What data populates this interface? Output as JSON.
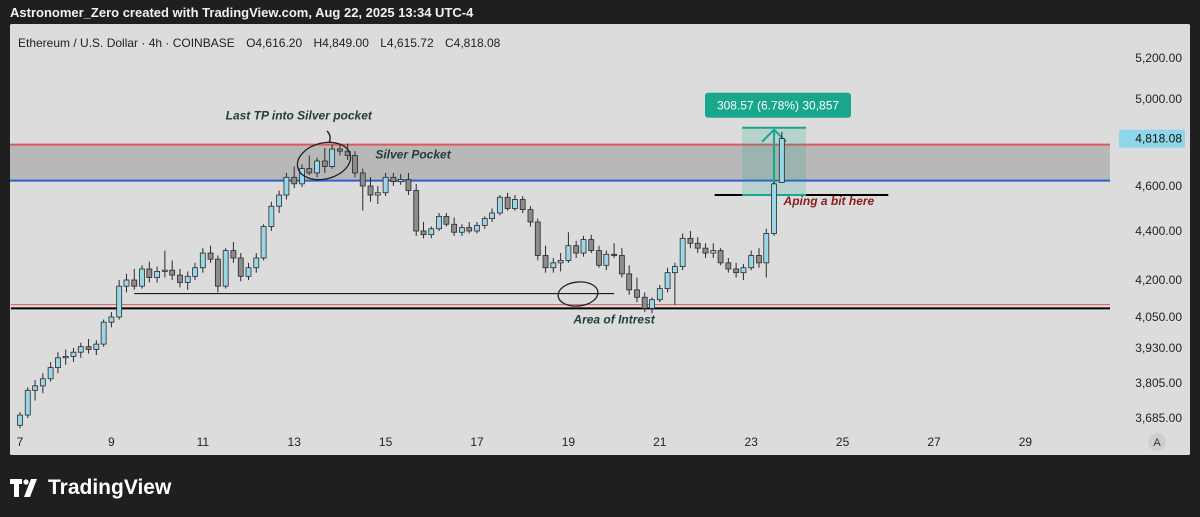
{
  "header": {
    "caption": "Astronomer_Zero created with TradingView.com, Aug 22, 2025 13:34 UTC-4"
  },
  "legend": {
    "symbol": "Ethereum / U.S. Dollar · 4h · COINBASE",
    "open_label": "O",
    "open": "4,616.20",
    "high_label": "H",
    "high": "4,849.00",
    "low_label": "L",
    "low": "4,615.72",
    "close_label": "C",
    "close": "4,818.08"
  },
  "brand": {
    "name": "TradingView"
  },
  "icons": {
    "logo": "tradingview-logo-icon",
    "auto_scale": "auto-scale-icon"
  },
  "colors": {
    "background": "#dcdcdc",
    "frame": "#1f1f1f",
    "candle_up": "#9ad7e8",
    "candle_down": "#8c8c8c",
    "candle_outline": "#2a2a2a",
    "zone": "#b3b1b3",
    "zone_red": "#e05a5a",
    "zone_blue": "#2f5fd0",
    "measure": "#18a68c",
    "annotation_text": "#1f3d3a",
    "aping_text": "#8a1d1d",
    "price_tag": "#8fd6ea"
  },
  "chart_data": {
    "type": "candlestick",
    "symbol": "Ethereum / U.S. Dollar",
    "interval": "4h",
    "exchange": "COINBASE",
    "x_axis_ticks": [
      "7",
      "9",
      "11",
      "13",
      "15",
      "17",
      "19",
      "21",
      "23",
      "25",
      "27",
      "29"
    ],
    "x_range_days": [
      6.8,
      31.3
    ],
    "y_axis_ticks": [
      "5,200.00",
      "5,000.00",
      "4,600.00",
      "4,400.00",
      "4,200.00",
      "4,050.00",
      "3,930.00",
      "3,805.00",
      "3,685.00"
    ],
    "y_axis_tick_values": [
      5200,
      5000,
      4600,
      4400,
      4200,
      4050,
      3930,
      3805,
      3685
    ],
    "last_price_label": "4,818.08",
    "last_price": 4818.08,
    "auto_scale_label": "A",
    "zones": [
      {
        "label": "Silver Pocket",
        "top": 4790,
        "bottom": 4625
      }
    ],
    "horizontal_lines": [
      {
        "price": 4085,
        "start_day": 6.8,
        "end_day": 31.3,
        "color": "#000000",
        "width": 2
      },
      {
        "price": 4100,
        "start_day": 6.8,
        "end_day": 31.3,
        "color": "#e05a5a",
        "width": 1
      },
      {
        "price": 4145,
        "start_day": 9.5,
        "end_day": 20.0,
        "color": "#000000",
        "width": 1
      },
      {
        "price": 4560,
        "start_day": 22.2,
        "end_day": 26.0,
        "color": "#000000",
        "width": 2
      }
    ],
    "annotations": [
      {
        "text": "Last TP into Silver pocket",
        "day": 13.1,
        "price": 4905
      },
      {
        "text": "Silver Pocket",
        "day": 15.6,
        "price": 4727
      },
      {
        "text": "Area of Intrest",
        "day": 20.0,
        "price": 4025
      },
      {
        "text": "Aping a bit here",
        "day": 24.7,
        "price": 4515
      }
    ],
    "measure": {
      "label": "308.57 (6.78%) 30,857",
      "day_start": 22.8,
      "day_end": 24.2,
      "price_from": 4560,
      "price_to": 4868
    },
    "candles": [
      {
        "t": 7.0,
        "o": 3660,
        "h": 3705,
        "l": 3650,
        "c": 3695
      },
      {
        "t": 7.17,
        "o": 3695,
        "h": 3790,
        "l": 3685,
        "c": 3780
      },
      {
        "t": 7.33,
        "o": 3780,
        "h": 3815,
        "l": 3745,
        "c": 3795
      },
      {
        "t": 7.5,
        "o": 3795,
        "h": 3840,
        "l": 3770,
        "c": 3820
      },
      {
        "t": 7.67,
        "o": 3820,
        "h": 3880,
        "l": 3810,
        "c": 3860
      },
      {
        "t": 7.83,
        "o": 3860,
        "h": 3915,
        "l": 3840,
        "c": 3895
      },
      {
        "t": 8.0,
        "o": 3895,
        "h": 3925,
        "l": 3870,
        "c": 3900
      },
      {
        "t": 8.17,
        "o": 3900,
        "h": 3930,
        "l": 3880,
        "c": 3915
      },
      {
        "t": 8.33,
        "o": 3915,
        "h": 3950,
        "l": 3895,
        "c": 3935
      },
      {
        "t": 8.5,
        "o": 3935,
        "h": 3965,
        "l": 3910,
        "c": 3925
      },
      {
        "t": 8.67,
        "o": 3925,
        "h": 3960,
        "l": 3905,
        "c": 3945
      },
      {
        "t": 8.83,
        "o": 3945,
        "h": 4040,
        "l": 3935,
        "c": 4030
      },
      {
        "t": 9.0,
        "o": 4030,
        "h": 4070,
        "l": 4010,
        "c": 4050
      },
      {
        "t": 9.17,
        "o": 4050,
        "h": 4200,
        "l": 4040,
        "c": 4175
      },
      {
        "t": 9.33,
        "o": 4175,
        "h": 4225,
        "l": 4150,
        "c": 4200
      },
      {
        "t": 9.5,
        "o": 4200,
        "h": 4245,
        "l": 4160,
        "c": 4175
      },
      {
        "t": 9.67,
        "o": 4175,
        "h": 4260,
        "l": 4165,
        "c": 4245
      },
      {
        "t": 9.83,
        "o": 4245,
        "h": 4275,
        "l": 4190,
        "c": 4210
      },
      {
        "t": 10.0,
        "o": 4210,
        "h": 4255,
        "l": 4190,
        "c": 4235
      },
      {
        "t": 10.17,
        "o": 4235,
        "h": 4320,
        "l": 4210,
        "c": 4240
      },
      {
        "t": 10.33,
        "o": 4240,
        "h": 4280,
        "l": 4200,
        "c": 4220
      },
      {
        "t": 10.5,
        "o": 4220,
        "h": 4245,
        "l": 4170,
        "c": 4190
      },
      {
        "t": 10.67,
        "o": 4190,
        "h": 4235,
        "l": 4160,
        "c": 4215
      },
      {
        "t": 10.83,
        "o": 4215,
        "h": 4270,
        "l": 4200,
        "c": 4250
      },
      {
        "t": 11.0,
        "o": 4250,
        "h": 4330,
        "l": 4230,
        "c": 4310
      },
      {
        "t": 11.17,
        "o": 4310,
        "h": 4340,
        "l": 4270,
        "c": 4285
      },
      {
        "t": 11.33,
        "o": 4285,
        "h": 4300,
        "l": 4150,
        "c": 4175
      },
      {
        "t": 11.5,
        "o": 4175,
        "h": 4330,
        "l": 4165,
        "c": 4320
      },
      {
        "t": 11.67,
        "o": 4320,
        "h": 4355,
        "l": 4270,
        "c": 4290
      },
      {
        "t": 11.83,
        "o": 4290,
        "h": 4310,
        "l": 4195,
        "c": 4215
      },
      {
        "t": 12.0,
        "o": 4215,
        "h": 4270,
        "l": 4200,
        "c": 4250
      },
      {
        "t": 12.17,
        "o": 4250,
        "h": 4310,
        "l": 4230,
        "c": 4290
      },
      {
        "t": 12.33,
        "o": 4290,
        "h": 4430,
        "l": 4280,
        "c": 4420
      },
      {
        "t": 12.5,
        "o": 4420,
        "h": 4530,
        "l": 4400,
        "c": 4510
      },
      {
        "t": 12.67,
        "o": 4510,
        "h": 4580,
        "l": 4480,
        "c": 4560
      },
      {
        "t": 12.83,
        "o": 4560,
        "h": 4660,
        "l": 4540,
        "c": 4640
      },
      {
        "t": 13.0,
        "o": 4640,
        "h": 4690,
        "l": 4590,
        "c": 4610
      },
      {
        "t": 13.17,
        "o": 4610,
        "h": 4700,
        "l": 4595,
        "c": 4680
      },
      {
        "t": 13.33,
        "o": 4680,
        "h": 4740,
        "l": 4650,
        "c": 4660
      },
      {
        "t": 13.5,
        "o": 4660,
        "h": 4730,
        "l": 4640,
        "c": 4715
      },
      {
        "t": 13.67,
        "o": 4715,
        "h": 4775,
        "l": 4660,
        "c": 4690
      },
      {
        "t": 13.83,
        "o": 4690,
        "h": 4790,
        "l": 4680,
        "c": 4770
      },
      {
        "t": 14.0,
        "o": 4770,
        "h": 4795,
        "l": 4740,
        "c": 4760
      },
      {
        "t": 14.17,
        "o": 4760,
        "h": 4795,
        "l": 4720,
        "c": 4740
      },
      {
        "t": 14.33,
        "o": 4740,
        "h": 4760,
        "l": 4640,
        "c": 4660
      },
      {
        "t": 14.5,
        "o": 4660,
        "h": 4680,
        "l": 4490,
        "c": 4600
      },
      {
        "t": 14.67,
        "o": 4600,
        "h": 4640,
        "l": 4530,
        "c": 4560
      },
      {
        "t": 14.83,
        "o": 4560,
        "h": 4600,
        "l": 4520,
        "c": 4570
      },
      {
        "t": 15.0,
        "o": 4570,
        "h": 4660,
        "l": 4555,
        "c": 4640
      },
      {
        "t": 15.17,
        "o": 4640,
        "h": 4660,
        "l": 4600,
        "c": 4620
      },
      {
        "t": 15.33,
        "o": 4620,
        "h": 4655,
        "l": 4605,
        "c": 4630
      },
      {
        "t": 15.5,
        "o": 4630,
        "h": 4660,
        "l": 4560,
        "c": 4580
      },
      {
        "t": 15.67,
        "o": 4580,
        "h": 4610,
        "l": 4380,
        "c": 4400
      },
      {
        "t": 15.83,
        "o": 4400,
        "h": 4440,
        "l": 4370,
        "c": 4385
      },
      {
        "t": 16.0,
        "o": 4385,
        "h": 4420,
        "l": 4370,
        "c": 4410
      },
      {
        "t": 16.17,
        "o": 4410,
        "h": 4480,
        "l": 4400,
        "c": 4465
      },
      {
        "t": 16.33,
        "o": 4465,
        "h": 4480,
        "l": 4420,
        "c": 4430
      },
      {
        "t": 16.5,
        "o": 4430,
        "h": 4460,
        "l": 4380,
        "c": 4395
      },
      {
        "t": 16.67,
        "o": 4395,
        "h": 4430,
        "l": 4380,
        "c": 4415
      },
      {
        "t": 16.83,
        "o": 4415,
        "h": 4440,
        "l": 4390,
        "c": 4400
      },
      {
        "t": 17.0,
        "o": 4400,
        "h": 4440,
        "l": 4390,
        "c": 4425
      },
      {
        "t": 17.17,
        "o": 4425,
        "h": 4465,
        "l": 4410,
        "c": 4455
      },
      {
        "t": 17.33,
        "o": 4455,
        "h": 4500,
        "l": 4440,
        "c": 4480
      },
      {
        "t": 17.5,
        "o": 4480,
        "h": 4560,
        "l": 4470,
        "c": 4550
      },
      {
        "t": 17.67,
        "o": 4550,
        "h": 4570,
        "l": 4490,
        "c": 4500
      },
      {
        "t": 17.83,
        "o": 4500,
        "h": 4560,
        "l": 4490,
        "c": 4540
      },
      {
        "t": 18.0,
        "o": 4540,
        "h": 4555,
        "l": 4480,
        "c": 4495
      },
      {
        "t": 18.17,
        "o": 4495,
        "h": 4510,
        "l": 4420,
        "c": 4440
      },
      {
        "t": 18.33,
        "o": 4440,
        "h": 4455,
        "l": 4280,
        "c": 4300
      },
      {
        "t": 18.5,
        "o": 4300,
        "h": 4340,
        "l": 4230,
        "c": 4250
      },
      {
        "t": 18.67,
        "o": 4250,
        "h": 4290,
        "l": 4230,
        "c": 4270
      },
      {
        "t": 18.83,
        "o": 4270,
        "h": 4310,
        "l": 4235,
        "c": 4280
      },
      {
        "t": 19.0,
        "o": 4280,
        "h": 4395,
        "l": 4270,
        "c": 4340
      },
      {
        "t": 19.17,
        "o": 4340,
        "h": 4360,
        "l": 4290,
        "c": 4310
      },
      {
        "t": 19.33,
        "o": 4310,
        "h": 4380,
        "l": 4295,
        "c": 4365
      },
      {
        "t": 19.5,
        "o": 4365,
        "h": 4385,
        "l": 4310,
        "c": 4320
      },
      {
        "t": 19.67,
        "o": 4320,
        "h": 4340,
        "l": 4250,
        "c": 4260
      },
      {
        "t": 19.83,
        "o": 4260,
        "h": 4320,
        "l": 4240,
        "c": 4305
      },
      {
        "t": 20.0,
        "o": 4305,
        "h": 4350,
        "l": 4290,
        "c": 4300
      },
      {
        "t": 20.17,
        "o": 4300,
        "h": 4330,
        "l": 4210,
        "c": 4225
      },
      {
        "t": 20.33,
        "o": 4225,
        "h": 4260,
        "l": 4140,
        "c": 4160
      },
      {
        "t": 20.5,
        "o": 4160,
        "h": 4210,
        "l": 4110,
        "c": 4130
      },
      {
        "t": 20.67,
        "o": 4130,
        "h": 4150,
        "l": 4070,
        "c": 4085
      },
      {
        "t": 20.83,
        "o": 4085,
        "h": 4130,
        "l": 4065,
        "c": 4120
      },
      {
        "t": 21.0,
        "o": 4120,
        "h": 4180,
        "l": 4110,
        "c": 4165
      },
      {
        "t": 21.17,
        "o": 4165,
        "h": 4250,
        "l": 4150,
        "c": 4230
      },
      {
        "t": 21.33,
        "o": 4230,
        "h": 4270,
        "l": 4100,
        "c": 4255
      },
      {
        "t": 21.5,
        "o": 4255,
        "h": 4390,
        "l": 4240,
        "c": 4370
      },
      {
        "t": 21.67,
        "o": 4370,
        "h": 4400,
        "l": 4330,
        "c": 4350
      },
      {
        "t": 21.83,
        "o": 4350,
        "h": 4375,
        "l": 4310,
        "c": 4330
      },
      {
        "t": 22.0,
        "o": 4330,
        "h": 4350,
        "l": 4290,
        "c": 4310
      },
      {
        "t": 22.17,
        "o": 4310,
        "h": 4350,
        "l": 4290,
        "c": 4320
      },
      {
        "t": 22.33,
        "o": 4320,
        "h": 4330,
        "l": 4260,
        "c": 4270
      },
      {
        "t": 22.5,
        "o": 4270,
        "h": 4290,
        "l": 4230,
        "c": 4245
      },
      {
        "t": 22.67,
        "o": 4245,
        "h": 4270,
        "l": 4210,
        "c": 4230
      },
      {
        "t": 22.83,
        "o": 4230,
        "h": 4265,
        "l": 4200,
        "c": 4250
      },
      {
        "t": 23.0,
        "o": 4250,
        "h": 4320,
        "l": 4240,
        "c": 4300
      },
      {
        "t": 23.17,
        "o": 4300,
        "h": 4330,
        "l": 4250,
        "c": 4270
      },
      {
        "t": 23.33,
        "o": 4270,
        "h": 4410,
        "l": 4210,
        "c": 4390
      },
      {
        "t": 23.5,
        "o": 4390,
        "h": 4620,
        "l": 4380,
        "c": 4610
      },
      {
        "t": 23.67,
        "o": 4616.2,
        "h": 4849,
        "l": 4615.72,
        "c": 4818.08
      }
    ]
  }
}
